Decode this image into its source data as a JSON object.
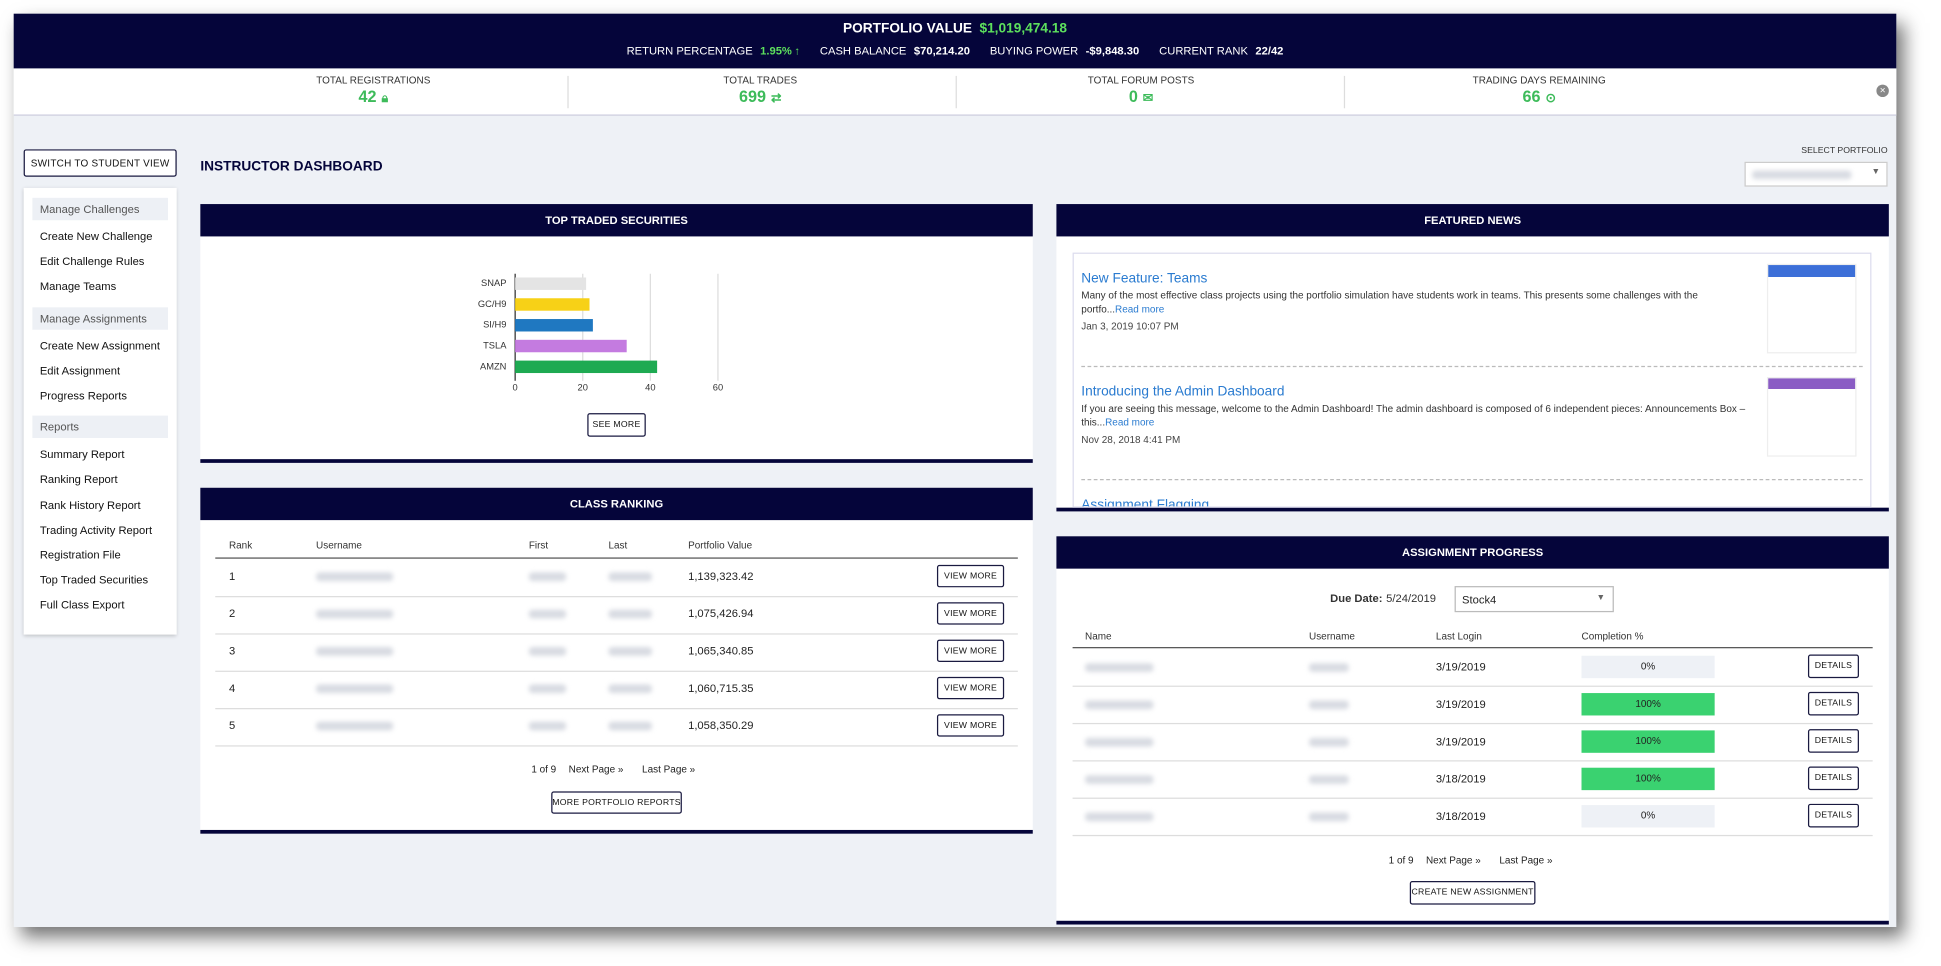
{
  "header": {
    "portfolio_label": "PORTFOLIO VALUE",
    "portfolio_value": "$1,019,474.18",
    "return_label": "RETURN PERCENTAGE",
    "return_value": "1.95%",
    "cash_label": "CASH BALANCE",
    "cash_value": "$70,214.20",
    "buying_label": "BUYING POWER",
    "buying_value": "-$9,848.30",
    "rank_label": "CURRENT RANK",
    "rank_value": "22/42"
  },
  "stats": [
    {
      "label": "TOTAL REGISTRATIONS",
      "value": "42"
    },
    {
      "label": "TOTAL TRADES",
      "value": "699"
    },
    {
      "label": "TOTAL FORUM POSTS",
      "value": "0"
    },
    {
      "label": "TRADING DAYS REMAINING",
      "value": "66"
    }
  ],
  "sidebar": {
    "switch_button": "SWITCH TO STUDENT VIEW",
    "groups": [
      {
        "title": "Manage Challenges",
        "items": [
          "Create New Challenge",
          "Edit Challenge Rules",
          "Manage Teams"
        ]
      },
      {
        "title": "Manage Assignments",
        "items": [
          "Create New Assignment",
          "Edit Assignment",
          "Progress Reports"
        ]
      },
      {
        "title": "Reports",
        "items": [
          "Summary Report",
          "Ranking Report",
          "Rank History Report",
          "Trading Activity Report",
          "Registration File",
          "Top Traded Securities",
          "Full Class Export"
        ]
      }
    ]
  },
  "dashboard_title": "INSTRUCTOR DASHBOARD",
  "select_portfolio_label": "SELECT PORTFOLIO",
  "chart_data": {
    "type": "bar",
    "orientation": "horizontal",
    "title": "TOP TRADED SECURITIES",
    "categories": [
      "SNAP",
      "GC/H9",
      "SI/H9",
      "TSLA",
      "AMZN"
    ],
    "values": [
      21,
      22,
      23,
      33,
      42
    ],
    "colors": [
      "#e4e4e4",
      "#f7d117",
      "#1f78c1",
      "#c47be0",
      "#1eaa52"
    ],
    "xlim": [
      0,
      60
    ],
    "xticks": [
      0,
      20,
      40,
      60
    ],
    "grid": true
  },
  "top_traded_button": "SEE MORE",
  "class_ranking": {
    "title": "CLASS RANKING",
    "columns": [
      "Rank",
      "Username",
      "First",
      "Last",
      "Portfolio Value"
    ],
    "rows": [
      {
        "rank": "1",
        "portfolio_value": "1,139,323.42",
        "button": "VIEW MORE"
      },
      {
        "rank": "2",
        "portfolio_value": "1,075,426.94",
        "button": "VIEW MORE"
      },
      {
        "rank": "3",
        "portfolio_value": "1,065,340.85",
        "button": "VIEW MORE"
      },
      {
        "rank": "4",
        "portfolio_value": "1,060,715.35",
        "button": "VIEW MORE"
      },
      {
        "rank": "5",
        "portfolio_value": "1,058,350.29",
        "button": "VIEW MORE"
      }
    ],
    "pagination": {
      "page": "1 of 9",
      "next": "Next Page »",
      "last": "Last Page »"
    },
    "button": "MORE PORTFOLIO REPORTS"
  },
  "featured_news": {
    "title": "FEATURED NEWS",
    "items": [
      {
        "title": "New Feature: Teams",
        "body": "Many of the most effective class projects using the portfolio simulation have students work in teams. This presents some challenges with the portfo...",
        "read_more": "Read more",
        "date": "Jan 3, 2019 10:07 PM"
      },
      {
        "title": "Introducing the Admin Dashboard",
        "body": "If you are seeing this message, welcome to the Admin Dashboard! The admin dashboard is composed of 6 independent pieces:   Announcements Box – this...",
        "read_more": "Read more",
        "date": "Nov 28, 2018 4:41 PM"
      },
      {
        "title": "Assignment Flagging"
      }
    ]
  },
  "assignment_progress": {
    "title": "ASSIGNMENT PROGRESS",
    "due_label": "Due Date:",
    "due_date": "5/24/2019",
    "assignment": "Stock4",
    "columns": [
      "Name",
      "Username",
      "Last Login",
      "Completion %"
    ],
    "rows": [
      {
        "last_login": "3/19/2019",
        "completion": "0%",
        "button": "DETAILS"
      },
      {
        "last_login": "3/19/2019",
        "completion": "100%",
        "button": "DETAILS"
      },
      {
        "last_login": "3/19/2019",
        "completion": "100%",
        "button": "DETAILS"
      },
      {
        "last_login": "3/18/2019",
        "completion": "100%",
        "button": "DETAILS"
      },
      {
        "last_login": "3/18/2019",
        "completion": "0%",
        "button": "DETAILS"
      }
    ],
    "pagination": {
      "page": "1 of 9",
      "next": "Next Page »",
      "last": "Last Page »"
    },
    "button": "CREATE NEW ASSIGNMENT"
  }
}
